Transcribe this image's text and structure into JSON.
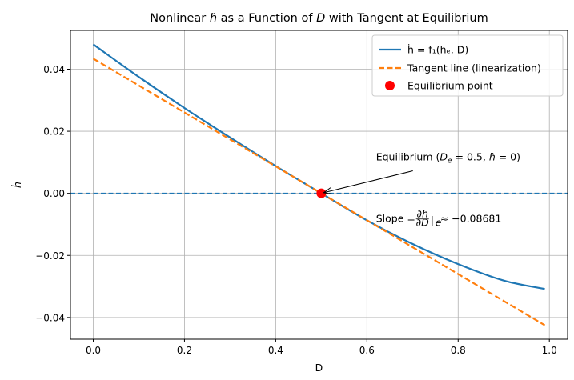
{
  "chart_data": {
    "type": "line",
    "title_parts": [
      "Nonlinear ",
      "h",
      "̇",
      " as a Function of ",
      "D",
      " with Tangent at Equilibrium"
    ],
    "xlabel": "D",
    "ylabel": "ḣ",
    "xlim": [
      -0.05,
      1.04
    ],
    "ylim": [
      -0.047,
      0.0525
    ],
    "xticks": [
      0.0,
      0.2,
      0.4,
      0.6,
      0.8,
      1.0
    ],
    "xtick_labels": [
      "0.0",
      "0.2",
      "0.4",
      "0.6",
      "0.8",
      "1.0"
    ],
    "yticks": [
      -0.04,
      -0.02,
      0.0,
      0.02,
      0.04
    ],
    "ytick_labels": [
      "−0.04",
      "−0.02",
      "0.00",
      "0.02",
      "0.04"
    ],
    "grid": true,
    "legend_placement": "top-right",
    "series": [
      {
        "name": "ḣ = f₁(hₑ, D)",
        "style": "solid",
        "color": "#1f77b4",
        "x": [
          0.0,
          0.1,
          0.2,
          0.3,
          0.4,
          0.5,
          0.6,
          0.7,
          0.8,
          0.9,
          0.99
        ],
        "y": [
          0.048,
          0.0375,
          0.0275,
          0.018,
          0.0088,
          0.0,
          -0.0087,
          -0.0163,
          -0.0228,
          -0.0281,
          -0.0308
        ]
      },
      {
        "name": "Tangent line (linearization)",
        "style": "dashed",
        "color": "#ff7f0e",
        "x": [
          0.0,
          0.99
        ],
        "y": [
          0.0434,
          -0.0425
        ]
      }
    ],
    "points": [
      {
        "name": "Equilibrium point",
        "x": 0.5,
        "y": 0.0,
        "color": "#ff0000"
      }
    ],
    "hline": {
      "y": 0.0,
      "style": "dashed",
      "color": "#1f77b4"
    },
    "annotations": {
      "equilibrium": {
        "text_parts": [
          "Equilibrium (",
          "D",
          "e",
          " = 0.5,  ",
          "h",
          "̇",
          " = 0)"
        ],
        "text_x": 0.62,
        "text_y": 0.0106,
        "arrow_to_x": 0.505,
        "arrow_to_y": 0.0002
      },
      "slope": {
        "text_parts": [
          "Slope  = ",
          "∂h",
          "∂D",
          "|",
          "e",
          " ≈ −0.08681"
        ],
        "text_x": 0.62,
        "text_y": -0.0093
      }
    }
  }
}
